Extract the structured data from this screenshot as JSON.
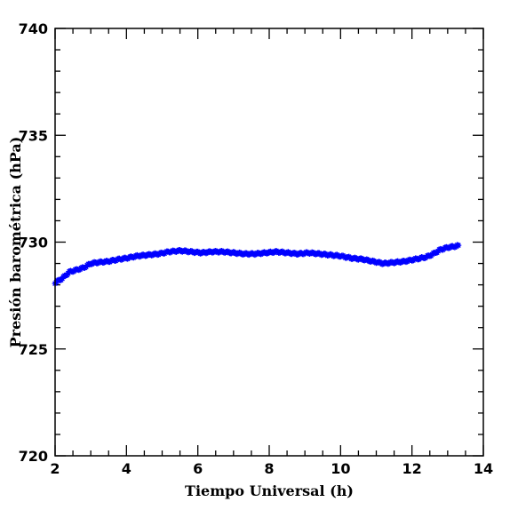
{
  "chart_data": {
    "type": "scatter",
    "xlabel": "Tiempo Universal (h)",
    "ylabel": "Presión barométrica (hPa)",
    "xlim": [
      2,
      14
    ],
    "ylim": [
      720,
      740
    ],
    "x_ticks": [
      2,
      4,
      6,
      8,
      10,
      12,
      14
    ],
    "y_ticks": [
      720,
      725,
      730,
      735,
      740
    ],
    "x_tick_labels": [
      "2",
      "4",
      "6",
      "8",
      "10",
      "12",
      "14"
    ],
    "y_tick_labels": [
      "720",
      "725",
      "730",
      "735",
      "740"
    ],
    "marker_color": "#0000ff",
    "marker": "star",
    "grid": false,
    "series": [
      {
        "x": [
          2.0,
          2.2,
          2.4,
          2.6,
          2.8,
          3.0,
          3.2,
          3.5,
          3.8,
          4.0,
          4.3,
          4.6,
          4.9,
          5.2,
          5.5,
          5.8,
          6.1,
          6.4,
          6.7,
          7.0,
          7.3,
          7.6,
          7.9,
          8.2,
          8.5,
          8.8,
          9.1,
          9.4,
          9.7,
          10.0,
          10.3,
          10.6,
          10.9,
          11.2,
          11.5,
          11.8,
          12.1,
          12.4,
          12.6,
          12.8,
          13.0,
          13.2,
          13.3
        ],
        "y": [
          728.1,
          728.3,
          728.6,
          728.7,
          728.8,
          729.0,
          729.05,
          729.1,
          729.2,
          729.25,
          729.35,
          729.4,
          729.45,
          729.55,
          729.6,
          729.55,
          729.5,
          729.55,
          729.55,
          729.5,
          729.45,
          729.45,
          729.5,
          729.55,
          729.5,
          729.45,
          729.5,
          729.45,
          729.4,
          729.35,
          729.25,
          729.2,
          729.1,
          729.0,
          729.05,
          729.1,
          729.2,
          729.3,
          729.45,
          729.65,
          729.75,
          729.8,
          729.85
        ]
      }
    ]
  }
}
